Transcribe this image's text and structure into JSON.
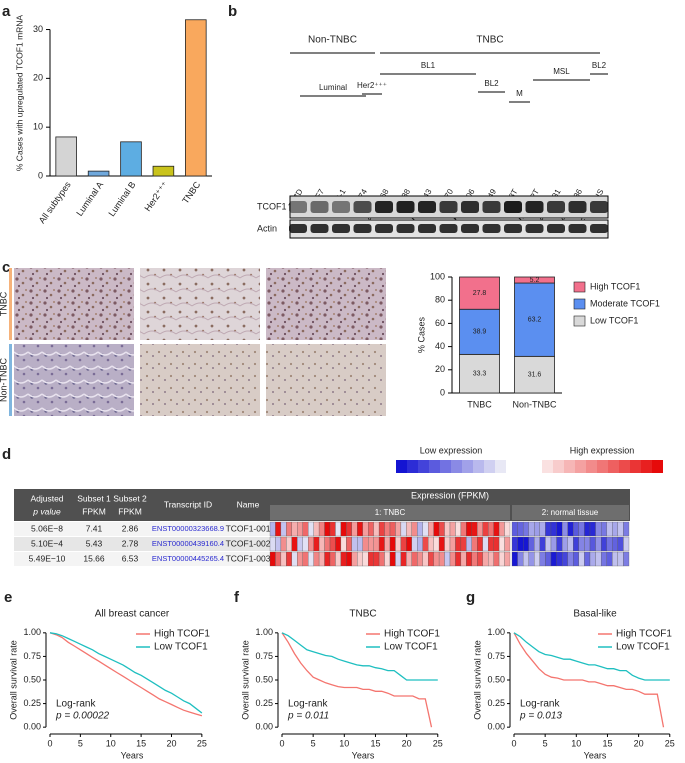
{
  "chart_data": [
    {
      "panel": "a",
      "type": "bar",
      "ylabel": "% Cases with upregulated TCOF1 mRNA",
      "categories": [
        "All subtypes",
        "Luminal A",
        "Luminal B",
        "Her2⁺⁺⁺",
        "TNBC"
      ],
      "values": [
        8,
        1,
        7,
        2,
        32
      ],
      "colors": [
        "#d4d4d4",
        "#6fa8dc",
        "#5dade2",
        "#c9c31c",
        "#f9a85d"
      ],
      "ylim": [
        0,
        34
      ],
      "yticks": [
        0,
        10,
        20,
        30
      ]
    },
    {
      "panel": "c",
      "type": "stacked_bar",
      "ylabel": "% Cases",
      "categories": [
        "TNBC",
        "Non-TNBC"
      ],
      "series": [
        {
          "name": "Low TCOF1",
          "color": "#d9d9d9",
          "values": [
            33.3,
            31.6
          ]
        },
        {
          "name": "Moderate TCOF1",
          "color": "#5b8ff0",
          "values": [
            38.9,
            63.2
          ]
        },
        {
          "name": "High TCOF1",
          "color": "#f2708c",
          "values": [
            27.8,
            5.2
          ]
        }
      ],
      "ylim": [
        0,
        100
      ],
      "yticks": [
        0,
        20,
        40,
        60,
        80,
        100
      ]
    },
    {
      "panel": "e",
      "type": "line",
      "title": "All breast cancer",
      "xlabel": "Years",
      "ylabel": "Overall survival rate",
      "x": [
        0,
        1,
        2,
        3,
        4,
        5,
        6,
        7,
        8,
        9,
        10,
        11,
        12,
        13,
        14,
        15,
        16,
        17,
        18,
        19,
        20,
        21,
        22,
        23,
        24,
        25
      ],
      "series": [
        {
          "name": "High TCOF1",
          "color": "#f4756f",
          "values": [
            1,
            0.98,
            0.95,
            0.9,
            0.86,
            0.82,
            0.78,
            0.74,
            0.7,
            0.66,
            0.62,
            0.58,
            0.54,
            0.5,
            0.46,
            0.42,
            0.38,
            0.34,
            0.3,
            0.27,
            0.24,
            0.21,
            0.18,
            0.16,
            0.14,
            0.12
          ]
        },
        {
          "name": "Low TCOF1",
          "color": "#1fbfc0",
          "values": [
            1,
            0.99,
            0.97,
            0.94,
            0.91,
            0.88,
            0.85,
            0.82,
            0.78,
            0.75,
            0.72,
            0.69,
            0.66,
            0.62,
            0.58,
            0.55,
            0.51,
            0.47,
            0.43,
            0.39,
            0.36,
            0.32,
            0.28,
            0.25,
            0.2,
            0.15
          ]
        }
      ],
      "annotations": [
        "Log-rank",
        "p = 0.00022"
      ],
      "xlim": [
        0,
        27
      ],
      "xticks": [
        0,
        5,
        10,
        15,
        20,
        25
      ],
      "ylim": [
        -0.03,
        1.03
      ],
      "yticks": [
        {
          "value": 0,
          "label": "0.00"
        },
        {
          "value": 0.25,
          "label": "0.25"
        },
        {
          "value": 0.5,
          "label": "0.50"
        },
        {
          "value": 0.75,
          "label": "0.75"
        },
        {
          "value": 1,
          "label": "1.00"
        }
      ]
    },
    {
      "panel": "f",
      "type": "line",
      "title": "TNBC",
      "xlabel": "Years",
      "ylabel": "Overall survival rate",
      "x": [
        0,
        1,
        2,
        3,
        4,
        5,
        6,
        7,
        8,
        9,
        10,
        11,
        12,
        13,
        14,
        15,
        16,
        17,
        18,
        19,
        20,
        21,
        22,
        23,
        24,
        25
      ],
      "series": [
        {
          "name": "High TCOF1",
          "color": "#f4756f",
          "values": [
            1,
            0.9,
            0.78,
            0.68,
            0.6,
            0.53,
            0.5,
            0.47,
            0.45,
            0.43,
            0.42,
            0.42,
            0.42,
            0.4,
            0.4,
            0.38,
            0.38,
            0.36,
            0.33,
            0.33,
            0.33,
            0.33,
            0.3,
            0.3,
            0,
            null
          ]
        },
        {
          "name": "Low TCOF1",
          "color": "#1fbfc0",
          "values": [
            1,
            0.97,
            0.92,
            0.87,
            0.82,
            0.8,
            0.78,
            0.76,
            0.75,
            0.72,
            0.7,
            0.68,
            0.66,
            0.65,
            0.65,
            0.63,
            0.62,
            0.6,
            0.6,
            0.55,
            0.5,
            0.5,
            0.5,
            0.5,
            0.5,
            0.5
          ]
        }
      ],
      "annotations": [
        "Log-rank",
        "p = 0.011"
      ],
      "xlim": [
        0,
        26
      ],
      "xticks": [
        0,
        5,
        10,
        15,
        20,
        25
      ],
      "ylim": [
        -0.03,
        1.03
      ],
      "yticks": [
        {
          "value": 0,
          "label": "0.00"
        },
        {
          "value": 0.25,
          "label": "0.25"
        },
        {
          "value": 0.5,
          "label": "0.50"
        },
        {
          "value": 0.75,
          "label": "0.75"
        },
        {
          "value": 1,
          "label": "1.00"
        }
      ]
    },
    {
      "panel": "g",
      "type": "line",
      "title": "Basal-like",
      "xlabel": "Years",
      "ylabel": "Overall survival rate",
      "x": [
        0,
        1,
        2,
        3,
        4,
        5,
        6,
        7,
        8,
        9,
        10,
        11,
        12,
        13,
        14,
        15,
        16,
        17,
        18,
        19,
        20,
        21,
        22,
        23,
        24,
        25
      ],
      "series": [
        {
          "name": "High TCOF1",
          "color": "#f4756f",
          "values": [
            1,
            0.88,
            0.78,
            0.7,
            0.62,
            0.56,
            0.53,
            0.52,
            0.5,
            0.5,
            0.5,
            0.5,
            0.48,
            0.48,
            0.46,
            0.44,
            0.44,
            0.42,
            0.4,
            0.4,
            0.38,
            0.35,
            0.35,
            0.35,
            0,
            null
          ]
        },
        {
          "name": "Low TCOF1",
          "color": "#1fbfc0",
          "values": [
            1,
            0.96,
            0.9,
            0.85,
            0.8,
            0.77,
            0.76,
            0.74,
            0.72,
            0.72,
            0.7,
            0.68,
            0.66,
            0.66,
            0.64,
            0.62,
            0.62,
            0.6,
            0.6,
            0.55,
            0.52,
            0.5,
            0.5,
            0.5,
            0.5,
            0.5
          ]
        }
      ],
      "annotations": [
        "Log-rank",
        "p = 0.013"
      ],
      "xlim": [
        0,
        26
      ],
      "xticks": [
        0,
        5,
        10,
        15,
        20,
        25
      ],
      "ylim": [
        -0.03,
        1.03
      ],
      "yticks": [
        {
          "value": 0,
          "label": "0.00"
        },
        {
          "value": 0.25,
          "label": "0.25"
        },
        {
          "value": 0.5,
          "label": "0.50"
        },
        {
          "value": 0.75,
          "label": "0.75"
        },
        {
          "value": 1,
          "label": "1.00"
        }
      ]
    }
  ],
  "blot": {
    "panel": "b",
    "groups": [
      "Non-TNBC",
      "TNBC"
    ],
    "subgroups": [
      "Luminal",
      "Her2⁺⁺⁺",
      "BL1",
      "BL2",
      "M",
      "MSL",
      "BL2"
    ],
    "cell_lines": [
      "T47D",
      "MCF7",
      "ZR-75-1",
      "BT474",
      "MDA-MB-468",
      "HCC38",
      "HCC1143",
      "HCC70",
      "HCC1806",
      "BT-549",
      "Hs578T",
      "SUM159-PT",
      "MDA-MB-231",
      "MDA-MB-436",
      "MCF-10-DCIS"
    ],
    "rows": [
      "TCOF1",
      "Actin"
    ]
  },
  "histology": {
    "rows": [
      "TNBC",
      "Non-TNBC"
    ]
  },
  "expression_table": {
    "panel": "d",
    "scale": [
      "Low expression",
      "High expression"
    ],
    "header": [
      [
        "Adjusted",
        "p value"
      ],
      [
        "Subset 1",
        "FPKM"
      ],
      [
        "Subset 2",
        "FPKM"
      ],
      [
        "Transcript ID"
      ],
      [
        "Name"
      ]
    ],
    "expression_header": "Expression (FPKM)",
    "subsets": [
      "1: TNBC",
      "2: normal tissue"
    ],
    "rows": [
      [
        "5.06E−8",
        "7.41",
        "2.86",
        "ENST00000323668.9",
        "TCOF1-001"
      ],
      [
        "5.10E−4",
        "5.43",
        "2.78",
        "ENST00000439160.4",
        "TCOF1-002"
      ],
      [
        "5.49E−10",
        "15.66",
        "6.53",
        "ENST00000445265.4",
        "TCOF1-003"
      ]
    ]
  }
}
